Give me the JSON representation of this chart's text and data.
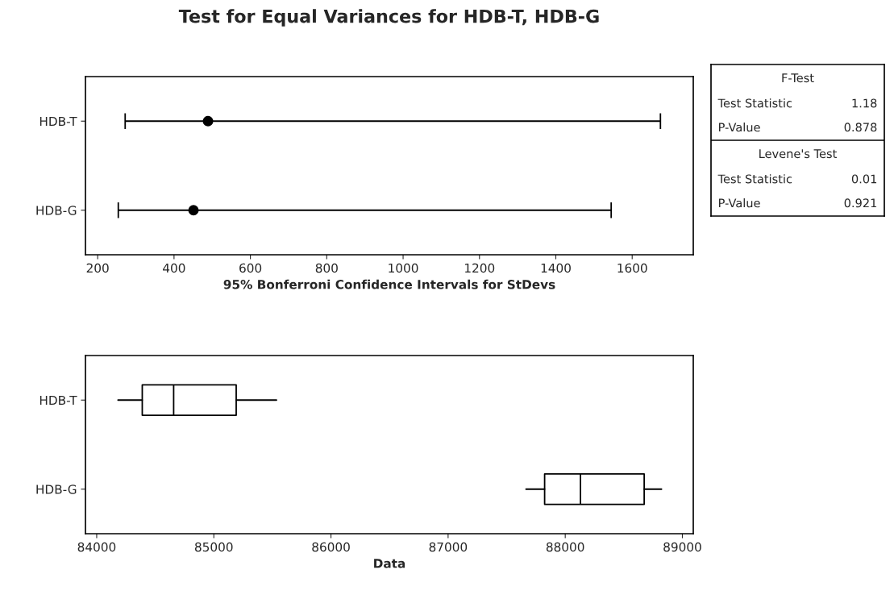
{
  "chart_data": [
    {
      "type": "scatter",
      "orientation": "horizontal",
      "title": "Test for Equal Variances for HDB-T, HDB-G",
      "xlabel": "95% Bonferroni Confidence Intervals for StDevs",
      "categories": [
        "HDB-T",
        "HDB-G"
      ],
      "color": "#000000",
      "values": [
        489,
        451
      ],
      "errors": [
        [
          272,
          1674
        ],
        [
          254,
          1545
        ]
      ],
      "marker": "circle",
      "xlim": [
        168,
        1760
      ],
      "xticks": [
        200,
        400,
        600,
        800,
        1000,
        1200,
        1400,
        1600
      ],
      "grid": false,
      "legend": false
    },
    {
      "type": "box",
      "orientation": "horizontal",
      "xlabel": "Data",
      "categories": [
        "HDB-T",
        "HDB-G"
      ],
      "boxes": [
        {
          "low": 84182,
          "q1": 84389,
          "median": 84657,
          "q3": 85191,
          "high": 85535
        },
        {
          "low": 87665,
          "q1": 87824,
          "median": 88130,
          "q3": 88674,
          "high": 88822
        }
      ],
      "xlim": [
        83904,
        89093
      ],
      "xticks": [
        84000,
        85000,
        86000,
        87000,
        88000,
        89000
      ],
      "grid": false,
      "legend": false
    },
    {
      "type": "other",
      "annotations": [
        "F-Test",
        "Test Statistic",
        "1.18",
        "P-Value",
        "0.878",
        "Levene's Test",
        "Test Statistic",
        "0.01",
        "P-Value",
        "0.921"
      ]
    }
  ]
}
